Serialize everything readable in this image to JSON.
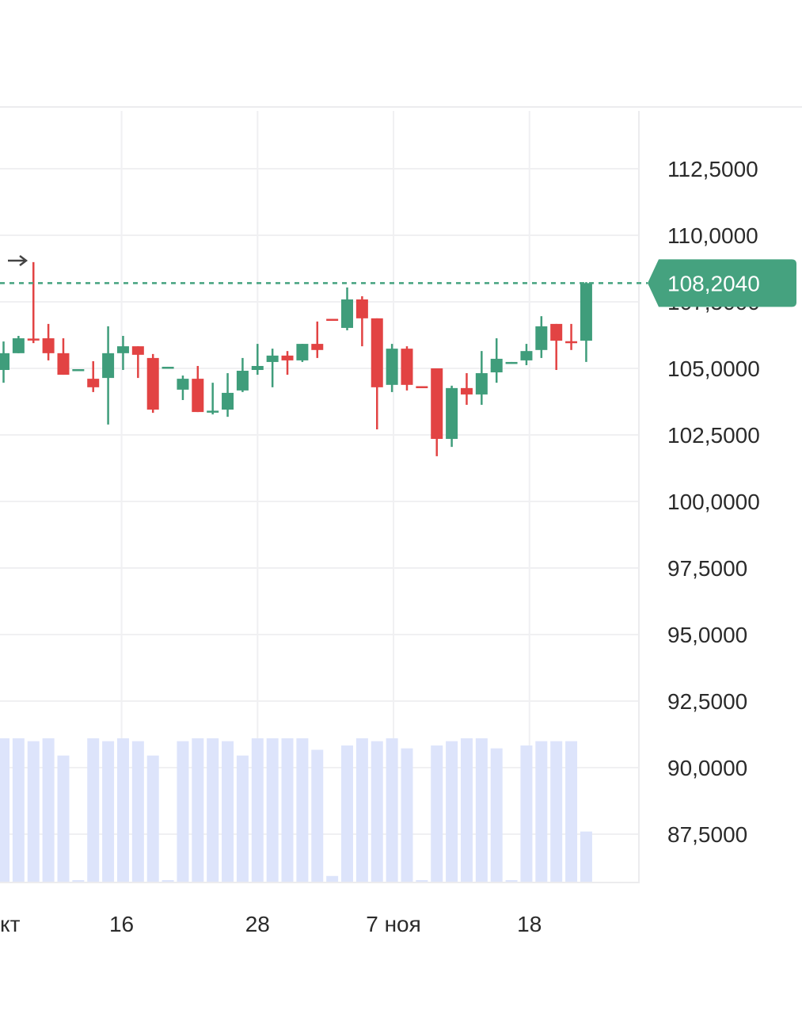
{
  "chart_data": {
    "type": "candlestick",
    "title": "",
    "y_ticks": [
      "112,5000",
      "110,0000",
      "107,5000",
      "105,0000",
      "102,5000",
      "100,0000",
      "97,5000",
      "95,0000",
      "92,5000",
      "90,0000",
      "87,5000"
    ],
    "y_tick_values": [
      112.5,
      110,
      107.5,
      105,
      102.5,
      100,
      97.5,
      95,
      92.5,
      90,
      87.5
    ],
    "ylim": [
      86.3,
      113.5
    ],
    "x_ticks": [
      {
        "label": "кт",
        "index": 0
      },
      {
        "label": "16",
        "index": 7.9
      },
      {
        "label": "28",
        "index": 17
      },
      {
        "label": "7 ноя",
        "index": 26.1
      },
      {
        "label": "18",
        "index": 35.2
      }
    ],
    "last_price": 108.204,
    "last_price_label": "108,2040",
    "colors": {
      "up": "#3f9d7b",
      "down": "#e24343",
      "volume": "#dde4fb",
      "grid": "#f0f0f2",
      "badge": "#45a27f"
    },
    "volume_relative_max": 1.0,
    "candles": [
      {
        "o": 104.94,
        "h": 106.01,
        "l": 104.46,
        "c": 105.57,
        "v": 1.0
      },
      {
        "o": 105.57,
        "h": 106.22,
        "l": 105.57,
        "c": 106.13,
        "v": 1.0
      },
      {
        "o": 106.12,
        "h": 108.99,
        "l": 105.95,
        "c": 106.08,
        "v": 0.98
      },
      {
        "o": 106.13,
        "h": 106.67,
        "l": 105.3,
        "c": 105.57,
        "v": 1.0
      },
      {
        "o": 105.57,
        "h": 106.13,
        "l": 104.76,
        "c": 104.76,
        "v": 0.88
      },
      {
        "o": 104.96,
        "h": 104.97,
        "l": 104.96,
        "c": 104.97,
        "v": 0.01
      },
      {
        "o": 104.61,
        "h": 105.27,
        "l": 104.11,
        "c": 104.29,
        "v": 1.0
      },
      {
        "o": 104.64,
        "h": 106.58,
        "l": 102.89,
        "c": 105.57,
        "v": 0.98
      },
      {
        "o": 105.57,
        "h": 106.22,
        "l": 104.94,
        "c": 105.83,
        "v": 1.0
      },
      {
        "o": 105.83,
        "h": 105.83,
        "l": 104.64,
        "c": 105.51,
        "v": 0.98
      },
      {
        "o": 105.39,
        "h": 105.54,
        "l": 103.33,
        "c": 103.45,
        "v": 0.88
      },
      {
        "o": 105.05,
        "h": 105.06,
        "l": 105.05,
        "c": 105.06,
        "v": 0.01
      },
      {
        "o": 104.2,
        "h": 104.73,
        "l": 103.81,
        "c": 104.61,
        "v": 0.98
      },
      {
        "o": 104.61,
        "h": 105.09,
        "l": 103.36,
        "c": 103.36,
        "v": 1.0
      },
      {
        "o": 103.37,
        "h": 104.46,
        "l": 103.27,
        "c": 103.41,
        "v": 1.0
      },
      {
        "o": 103.45,
        "h": 104.82,
        "l": 103.18,
        "c": 104.08,
        "v": 0.98
      },
      {
        "o": 104.17,
        "h": 105.39,
        "l": 104.11,
        "c": 104.91,
        "v": 0.88
      },
      {
        "o": 104.94,
        "h": 105.92,
        "l": 104.76,
        "c": 105.09,
        "v": 1.0
      },
      {
        "o": 105.24,
        "h": 105.74,
        "l": 104.29,
        "c": 105.48,
        "v": 1.0
      },
      {
        "o": 105.48,
        "h": 105.65,
        "l": 104.76,
        "c": 105.3,
        "v": 1.0
      },
      {
        "o": 105.3,
        "h": 105.92,
        "l": 105.24,
        "c": 105.92,
        "v": 1.0
      },
      {
        "o": 105.92,
        "h": 106.76,
        "l": 105.39,
        "c": 105.69,
        "v": 0.92
      },
      {
        "o": 106.86,
        "h": 106.86,
        "l": 106.84,
        "c": 106.84,
        "v": 0.04
      },
      {
        "o": 106.52,
        "h": 108.04,
        "l": 106.43,
        "c": 107.59,
        "v": 0.95
      },
      {
        "o": 107.59,
        "h": 107.71,
        "l": 105.83,
        "c": 106.88,
        "v": 1.0
      },
      {
        "o": 106.88,
        "h": 106.88,
        "l": 102.71,
        "c": 104.29,
        "v": 0.98
      },
      {
        "o": 104.38,
        "h": 105.92,
        "l": 104.11,
        "c": 105.74,
        "v": 1.0
      },
      {
        "o": 105.74,
        "h": 105.83,
        "l": 104.17,
        "c": 104.38,
        "v": 0.93
      },
      {
        "o": 104.33,
        "h": 104.33,
        "l": 104.31,
        "c": 104.31,
        "v": 0.01
      },
      {
        "o": 105.0,
        "h": 105.0,
        "l": 101.7,
        "c": 102.35,
        "v": 0.95
      },
      {
        "o": 102.35,
        "h": 104.35,
        "l": 102.05,
        "c": 104.26,
        "v": 0.98
      },
      {
        "o": 104.26,
        "h": 104.82,
        "l": 103.63,
        "c": 104.02,
        "v": 1.0
      },
      {
        "o": 104.02,
        "h": 105.65,
        "l": 103.63,
        "c": 104.82,
        "v": 1.0
      },
      {
        "o": 104.85,
        "h": 106.13,
        "l": 104.46,
        "c": 105.36,
        "v": 0.93
      },
      {
        "o": 105.23,
        "h": 105.24,
        "l": 105.23,
        "c": 105.24,
        "v": 0.01
      },
      {
        "o": 105.3,
        "h": 105.92,
        "l": 105.12,
        "c": 105.65,
        "v": 0.95
      },
      {
        "o": 105.69,
        "h": 106.96,
        "l": 105.39,
        "c": 106.58,
        "v": 0.98
      },
      {
        "o": 106.67,
        "h": 106.67,
        "l": 104.94,
        "c": 106.04,
        "v": 0.98
      },
      {
        "o": 106.02,
        "h": 106.67,
        "l": 105.69,
        "c": 106.0,
        "v": 0.98
      },
      {
        "o": 106.04,
        "h": 108.24,
        "l": 105.24,
        "c": 108.204,
        "v": 0.35
      }
    ]
  }
}
